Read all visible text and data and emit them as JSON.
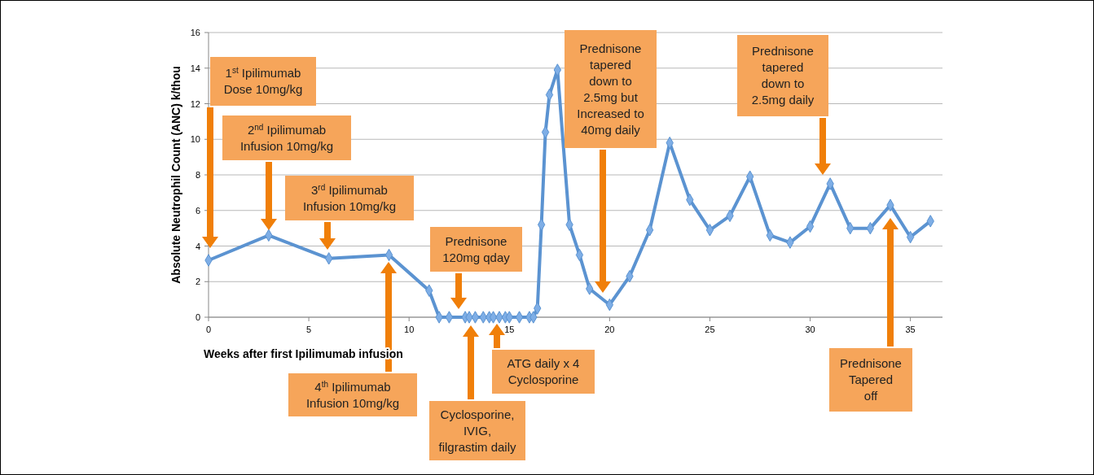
{
  "chart_data": {
    "type": "line",
    "xlabel": "Weeks after first Ipilimumab infusion",
    "ylabel": "Absolute Neutrophil Count (ANC) k/thou",
    "xlim": [
      0,
      36.6
    ],
    "xticks": [
      0,
      5,
      10,
      15,
      20,
      25,
      30,
      35
    ],
    "ylim": [
      0,
      16
    ],
    "yticks": [
      0,
      2,
      4,
      6,
      8,
      10,
      12,
      14,
      16
    ],
    "grid": "y",
    "marker": "diamond",
    "line_style": "solid",
    "series": [
      {
        "color": "#5b93d1",
        "x": [
          0,
          3,
          6,
          9,
          11,
          11.5,
          12,
          12.8,
          13,
          13.3,
          13.7,
          14,
          14.2,
          14.5,
          14.8,
          15,
          15.5,
          16,
          16.2,
          16.4,
          16.6,
          16.8,
          17,
          17.4,
          18,
          18.5,
          19,
          20,
          21,
          22,
          23,
          24,
          25,
          26,
          27,
          28,
          29,
          30,
          31,
          32,
          33,
          34,
          35,
          36
        ],
        "values": [
          3.2,
          4.6,
          3.3,
          3.5,
          1.5,
          0,
          0,
          0,
          0,
          0,
          0,
          0,
          0,
          0,
          0,
          0,
          0,
          0,
          0,
          0.5,
          5.2,
          10.4,
          12.5,
          13.9,
          5.2,
          3.5,
          1.6,
          0.7,
          2.3,
          4.9,
          9.8,
          6.6,
          4.9,
          5.7,
          7.9,
          4.6,
          4.2,
          5.1,
          7.5,
          5.0,
          5.0,
          6.3,
          4.5,
          5.4
        ]
      }
    ],
    "annotations": [
      "1$^{st}$ Ipilimumab\nDose  10mg/kg",
      "2$^{nd}$ Ipilimumab\nInfusion  10mg/kg",
      "3$^{rd}$ Ipilimumab\nInfusion  10mg/kg",
      "4$^{th}$ Ipilimumab\nInfusion  10mg/kg",
      "Prednisone\n120mg qday",
      "Cyclosporine,\nIVIG,\nfilgrastim daily",
      "ATG daily x 4\nCyclosporine",
      "Prednisone\ntapered\ndown to\n2.5mg but\nIncreased to\n40mg daily",
      "Prednisone\ntapered\ndown to\n2.5mg daily",
      "Prednisone\nTapered\noff"
    ]
  }
}
